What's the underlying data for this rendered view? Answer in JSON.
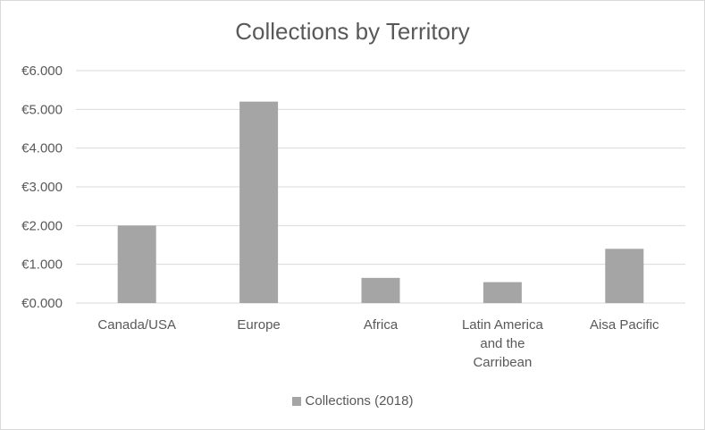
{
  "chart_data": {
    "type": "bar",
    "title": "Collections by Territory",
    "categories": [
      [
        "Canada/USA"
      ],
      [
        "Europe"
      ],
      [
        "Africa"
      ],
      [
        "Latin America",
        "and the",
        "Carribean"
      ],
      [
        "Aisa Pacific"
      ]
    ],
    "series": [
      {
        "name": "Collections (2018)",
        "values": [
          2000,
          5200,
          650,
          540,
          1400
        ],
        "color": "#a5a5a5"
      }
    ],
    "ylim": [
      0,
      6000
    ],
    "yticks": [
      0,
      1000,
      2000,
      3000,
      4000,
      5000,
      6000
    ],
    "ytick_labels": [
      "€0.000",
      "€1.000",
      "€2.000",
      "€3.000",
      "€4.000",
      "€5.000",
      "€6.000"
    ],
    "grid": true,
    "legend_position": "bottom"
  }
}
